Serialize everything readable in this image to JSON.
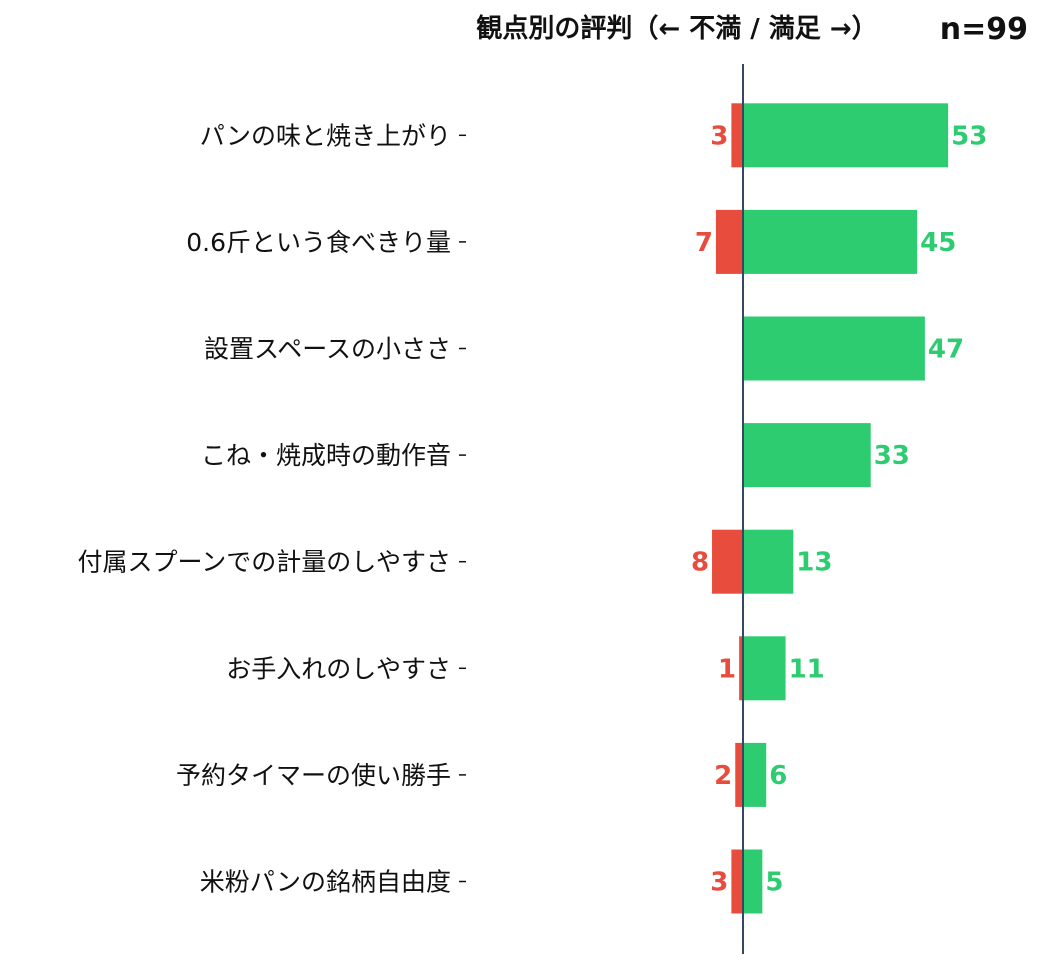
{
  "chart_data": {
    "type": "bar",
    "orientation": "horizontal-diverging",
    "title": "観点別の評判（← 不満 / 満足 →）",
    "n_label": "n=99",
    "categories": [
      "パンの味と焼き上がり",
      "0.6斤という食べきり量",
      "設置スペースの小ささ",
      "こね・焼成時の動作音",
      "付属スプーンでの計量のしやすさ",
      "お手入れのしやすさ",
      "予約タイマーの使い勝手",
      "米粉パンの銘柄自由度"
    ],
    "series": [
      {
        "values": [
          3,
          7,
          0,
          0,
          8,
          1,
          2,
          3
        ],
        "color": "#e74c3c",
        "direction": "left"
      },
      {
        "values": [
          53,
          45,
          47,
          33,
          13,
          11,
          6,
          5
        ],
        "color": "#2ecc71",
        "direction": "right"
      }
    ],
    "axis_color": "#34495e",
    "grid": false
  }
}
